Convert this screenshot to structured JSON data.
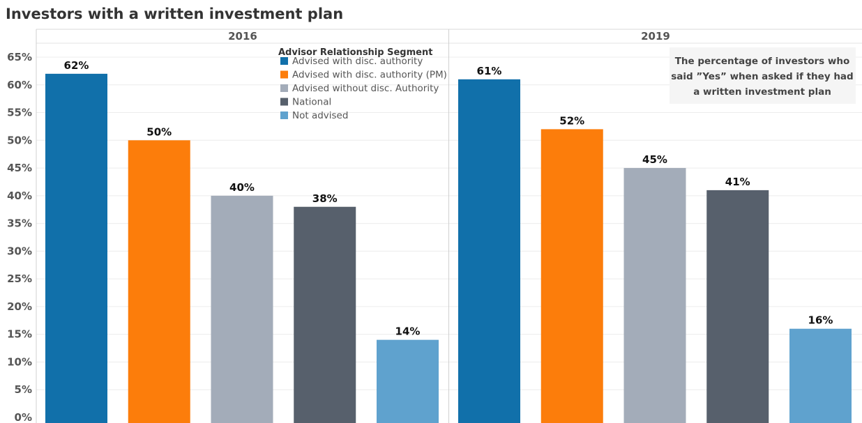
{
  "chart_data": {
    "type": "bar",
    "title": "Investors with a written investment plan",
    "panels": [
      "2016",
      "2019"
    ],
    "categories": [
      "Advised with disc. authority",
      "Advised with disc. authority (PM)",
      "Advised without disc. Authority",
      "National",
      "Not advised"
    ],
    "values": {
      "2016": [
        62,
        50,
        40,
        38,
        14
      ],
      "2019": [
        61,
        52,
        45,
        41,
        16
      ]
    },
    "data_labels": {
      "2016": [
        "62%",
        "50%",
        "40%",
        "38%",
        "14%"
      ],
      "2019": [
        "61%",
        "52%",
        "45%",
        "41%",
        "16%"
      ]
    },
    "colors": [
      "#1170aa",
      "#fc7d0b",
      "#a3acb9",
      "#57606c",
      "#5fa2ce"
    ],
    "ylim": [
      0,
      65
    ],
    "yticks": [
      0,
      5,
      10,
      15,
      20,
      25,
      30,
      35,
      40,
      45,
      50,
      55,
      60,
      65
    ],
    "ytick_labels": [
      "0%",
      "5%",
      "10%",
      "15%",
      "20%",
      "25%",
      "30%",
      "35%",
      "40%",
      "45%",
      "50%",
      "55%",
      "60%",
      "65%"
    ],
    "grid": true,
    "legend": {
      "title": "Advisor Relationship Segment",
      "placement": "top, inside 2016 panel"
    },
    "annotation": [
      "The percentage of investors who",
      "said ”Yes” when asked if they had",
      "a written investment plan"
    ]
  }
}
